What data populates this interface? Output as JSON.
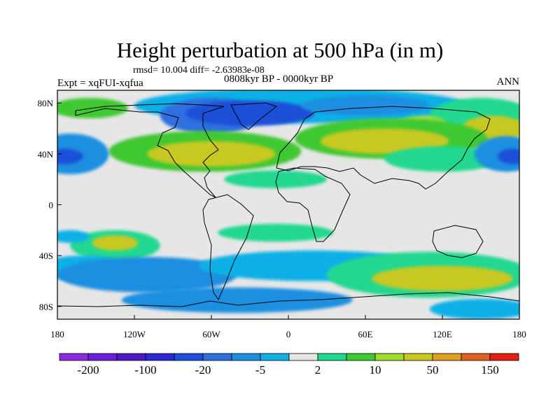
{
  "title": "Height perturbation at 500 hPa (in m)",
  "stats": "rmsd= 10.004 diff= -2.63983e-08",
  "experiment": "Expt = xqFUI-xqfua",
  "period": "0808kyr BP - 0000kyr BP",
  "season": "ANN",
  "axes": {
    "x_ticks": [
      "180",
      "120W",
      "60W",
      "0",
      "60E",
      "120E",
      "180"
    ],
    "y_ticks": [
      "80N",
      "40N",
      "0",
      "40S",
      "80S"
    ]
  },
  "colorbar": {
    "colors": [
      "#8a2be2",
      "#6a1fd8",
      "#4b1cc4",
      "#2a2ad0",
      "#1f4fd8",
      "#2f6fe0",
      "#1a8fe0",
      "#10b0e6",
      "#e6e6e6",
      "#20d890",
      "#40c830",
      "#a0dc30",
      "#c8c820",
      "#e0a020",
      "#e06020",
      "#e02010"
    ],
    "labels": [
      "-200",
      "-100",
      "-20",
      "-5",
      "2",
      "10",
      "50",
      "150"
    ]
  },
  "map": {
    "background_color": "#e6e6e6",
    "blobs": [
      {
        "lon": 10,
        "lat": 78,
        "rx": 130,
        "ry": 14,
        "color": "#10b0e6"
      },
      {
        "lon": -60,
        "lat": 70,
        "rx": 40,
        "ry": 14,
        "color": "#2f6fe0"
      },
      {
        "lon": -30,
        "lat": 72,
        "rx": 50,
        "ry": 10,
        "color": "#1f4fd8"
      },
      {
        "lon": 60,
        "lat": 78,
        "rx": 50,
        "ry": 8,
        "color": "#1a8fe0"
      },
      {
        "lon": -155,
        "lat": 76,
        "rx": 30,
        "ry": 8,
        "color": "#40c830"
      },
      {
        "lon": 150,
        "lat": 70,
        "rx": 40,
        "ry": 14,
        "color": "#20d890"
      },
      {
        "lon": 160,
        "lat": 60,
        "rx": 25,
        "ry": 10,
        "color": "#c8c820"
      },
      {
        "lon": 105,
        "lat": 64,
        "rx": 18,
        "ry": 6,
        "color": "#a0dc30"
      },
      {
        "lon": -65,
        "lat": 42,
        "rx": 75,
        "ry": 16,
        "color": "#40c830"
      },
      {
        "lon": -60,
        "lat": 40,
        "rx": 50,
        "ry": 10,
        "color": "#c8c820"
      },
      {
        "lon": 80,
        "lat": 52,
        "rx": 75,
        "ry": 16,
        "color": "#40c830"
      },
      {
        "lon": 75,
        "lat": 50,
        "rx": 50,
        "ry": 10,
        "color": "#c8c820"
      },
      {
        "lon": 120,
        "lat": 36,
        "rx": 45,
        "ry": 10,
        "color": "#20d890"
      },
      {
        "lon": -170,
        "lat": 40,
        "rx": 30,
        "ry": 16,
        "color": "#1a8fe0"
      },
      {
        "lon": 170,
        "lat": 40,
        "rx": 25,
        "ry": 14,
        "color": "#1a8fe0"
      },
      {
        "lon": -175,
        "lat": 38,
        "rx": 15,
        "ry": 6,
        "color": "#1f4fd8"
      },
      {
        "lon": 175,
        "lat": 38,
        "rx": 12,
        "ry": 6,
        "color": "#1f4fd8"
      },
      {
        "lon": -10,
        "lat": 20,
        "rx": 40,
        "ry": 7,
        "color": "#20d890"
      },
      {
        "lon": -10,
        "lat": -22,
        "rx": 45,
        "ry": 7,
        "color": "#20d890"
      },
      {
        "lon": -135,
        "lat": -32,
        "rx": 35,
        "ry": 12,
        "color": "#20d890"
      },
      {
        "lon": -135,
        "lat": -30,
        "rx": 18,
        "ry": 6,
        "color": "#c8c820"
      },
      {
        "lon": -170,
        "lat": -25,
        "rx": 15,
        "ry": 5,
        "color": "#10b0e6"
      },
      {
        "lon": -160,
        "lat": -50,
        "rx": 35,
        "ry": 10,
        "color": "#10b0e6"
      },
      {
        "lon": -110,
        "lat": -55,
        "rx": 70,
        "ry": 14,
        "color": "#1a8fe0"
      },
      {
        "lon": 20,
        "lat": -48,
        "rx": 90,
        "ry": 12,
        "color": "#10b0e6"
      },
      {
        "lon": 110,
        "lat": -55,
        "rx": 80,
        "ry": 18,
        "color": "#20d890"
      },
      {
        "lon": 120,
        "lat": -58,
        "rx": 55,
        "ry": 10,
        "color": "#c8c820"
      },
      {
        "lon": -40,
        "lat": -75,
        "rx": 90,
        "ry": 10,
        "color": "#1a8fe0"
      },
      {
        "lon": 150,
        "lat": -82,
        "rx": 40,
        "ry": 8,
        "color": "#10b0e6"
      }
    ]
  }
}
